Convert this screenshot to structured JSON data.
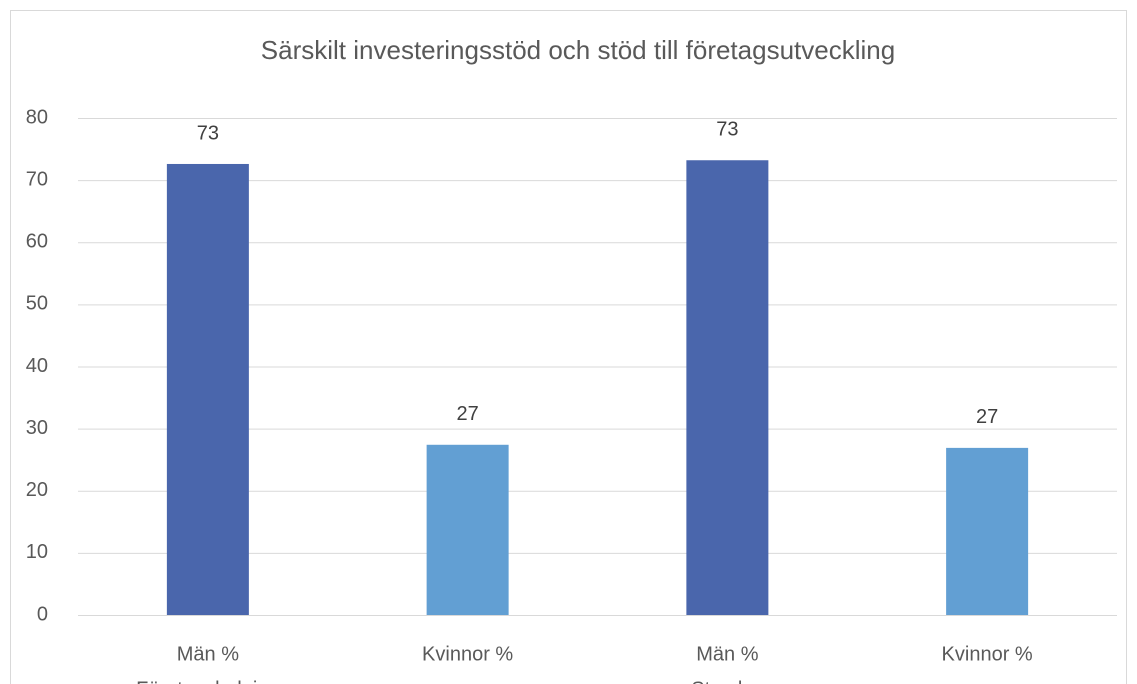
{
  "chart_data": {
    "type": "bar",
    "title": "Särskilt investeringsstöd och stöd till företagsutveckling",
    "categories": [
      "Män %",
      "Kvinnor %",
      "Män %",
      "Kvinnor %"
    ],
    "groups": [
      "Företagsledning",
      "Styrelse"
    ],
    "values": [
      72.6,
      27.4,
      73.2,
      26.9
    ],
    "value_labels": [
      "73",
      "27",
      "73",
      "27"
    ],
    "colors": [
      "#4a66ac",
      "#629fd3",
      "#4a66ac",
      "#629fd3"
    ],
    "ylim": [
      0,
      80
    ],
    "yticks": [
      0,
      10,
      20,
      30,
      40,
      50,
      60,
      70,
      80
    ],
    "grid": true
  }
}
